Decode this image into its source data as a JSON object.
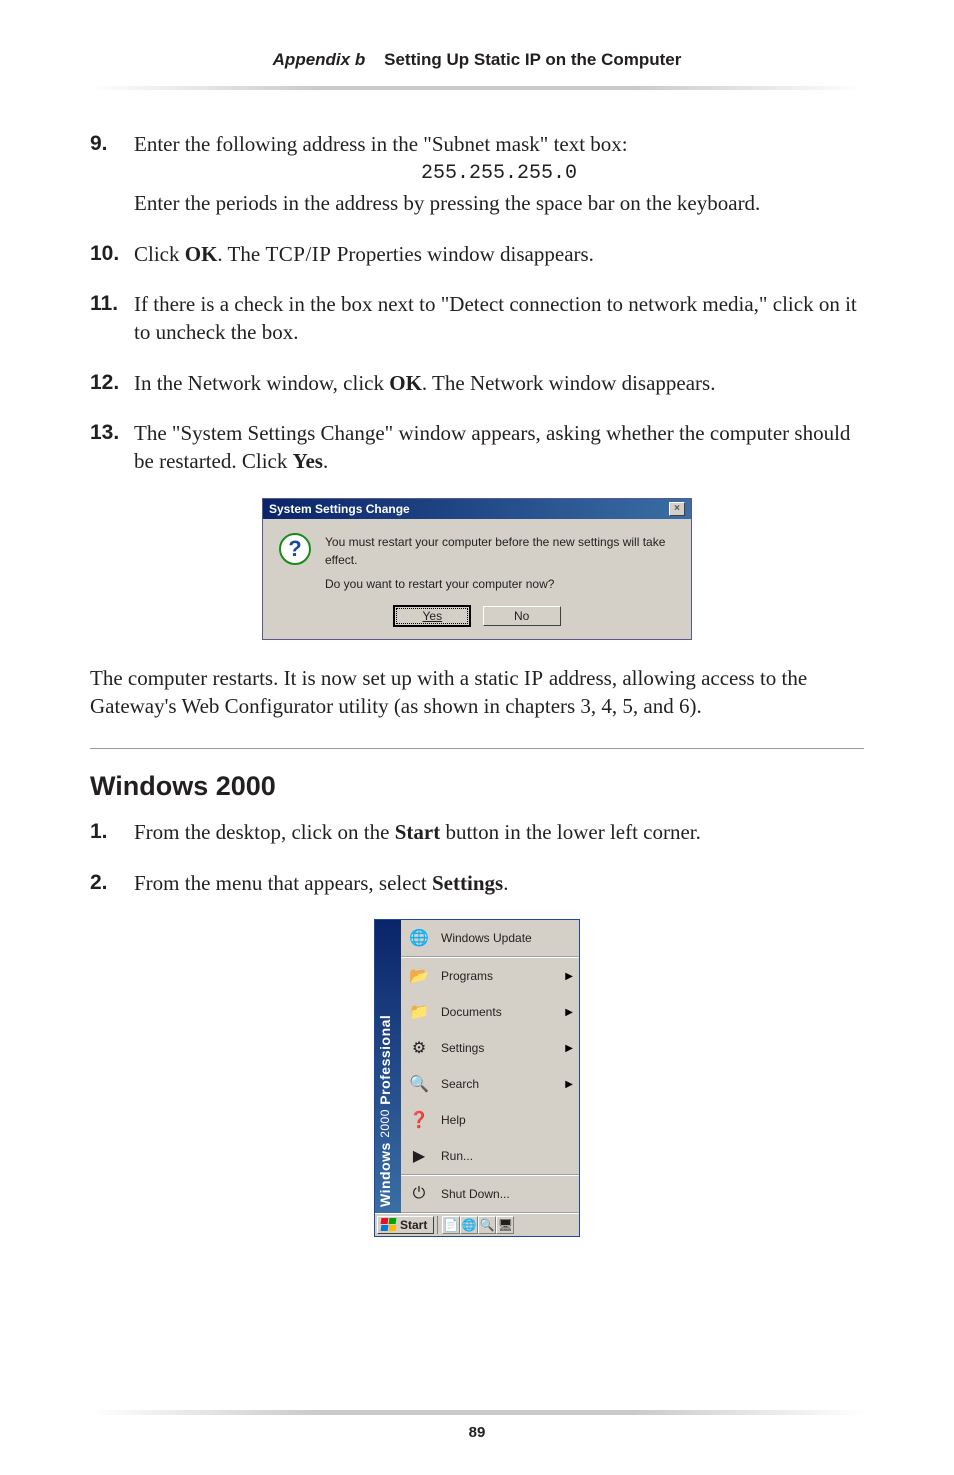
{
  "header": {
    "italic_part": "Appendix b",
    "bold_part": "Setting Up Static IP on the Computer"
  },
  "steps_a": [
    {
      "num": "9.",
      "lines": [
        {
          "type": "text",
          "runs": [
            {
              "t": "Enter the following address in the \"Subnet mask\" text box:"
            }
          ]
        },
        {
          "type": "mono",
          "value": "255.255.255.0"
        },
        {
          "type": "text",
          "runs": [
            {
              "t": "Enter the periods in the address by pressing the space bar on the keyboard."
            }
          ]
        }
      ]
    },
    {
      "num": "10.",
      "lines": [
        {
          "type": "text",
          "runs": [
            {
              "t": "Click "
            },
            {
              "t": "OK",
              "bold": true
            },
            {
              "t": ". The "
            },
            {
              "t": "TCP/IP",
              "sc": true
            },
            {
              "t": " Properties window disappears."
            }
          ]
        }
      ]
    },
    {
      "num": "11.",
      "lines": [
        {
          "type": "text",
          "runs": [
            {
              "t": "If there is a check in the box next to \"Detect connection to network media,\" click on it to uncheck the box."
            }
          ]
        }
      ]
    },
    {
      "num": "12.",
      "lines": [
        {
          "type": "text",
          "runs": [
            {
              "t": "In the Network window, click "
            },
            {
              "t": "OK",
              "bold": true
            },
            {
              "t": ". The Network window disappears."
            }
          ]
        }
      ]
    },
    {
      "num": "13.",
      "lines": [
        {
          "type": "text",
          "runs": [
            {
              "t": "The \"System Settings Change\" window appears, asking whether the computer should be restarted. Click "
            },
            {
              "t": "Yes",
              "bold": true
            },
            {
              "t": "."
            }
          ]
        }
      ]
    }
  ],
  "dialog": {
    "title": "System Settings Change",
    "line1": "You must restart your computer before the new settings will take effect.",
    "line2": "Do you want to restart your computer now?",
    "yes": "Yes",
    "no": "No"
  },
  "after_dialog": {
    "runs": [
      {
        "t": "The computer restarts. It is now set up with a static "
      },
      {
        "t": "IP",
        "sc": true
      },
      {
        "t": " address, allowing access to the Gateway's Web Configurator utility (as shown in chapters 3, 4, 5, and 6)."
      }
    ]
  },
  "section_title": "Windows 2000",
  "steps_b": [
    {
      "num": "1.",
      "lines": [
        {
          "type": "text",
          "runs": [
            {
              "t": "From the desktop, click on the "
            },
            {
              "t": "Start",
              "bold": true
            },
            {
              "t": " button in the lower left corner."
            }
          ]
        }
      ]
    },
    {
      "num": "2.",
      "lines": [
        {
          "type": "text",
          "runs": [
            {
              "t": "From the menu that appears, select "
            },
            {
              "t": "Settings",
              "bold": true
            },
            {
              "t": "."
            }
          ]
        }
      ]
    }
  ],
  "startmenu": {
    "sidebar_brand": "Windows",
    "sidebar_year": "2000",
    "sidebar_edition": "Professional",
    "groups": [
      [
        {
          "icon": "🌐",
          "label": "Windows Update",
          "arrow": false
        }
      ],
      [
        {
          "icon": "📂",
          "label": "Programs",
          "arrow": true
        },
        {
          "icon": "📁",
          "label": "Documents",
          "arrow": true
        },
        {
          "icon": "⚙",
          "label": "Settings",
          "arrow": true
        },
        {
          "icon": "🔍",
          "label": "Search",
          "arrow": true
        },
        {
          "icon": "❓",
          "label": "Help",
          "arrow": false
        },
        {
          "icon": "▶",
          "label": "Run...",
          "arrow": false
        }
      ],
      [
        {
          "icon": "⏻",
          "label": "Shut Down...",
          "arrow": false
        }
      ]
    ],
    "start_label": "Start",
    "tray_icons": [
      "📄",
      "🌐",
      "🔍",
      "🖥"
    ]
  },
  "page_number": "89",
  "colors": {
    "rule_gradient_mid": "#c9c9c9",
    "titlebar_start": "#0a246a",
    "titlebar_end": "#3a6ea5",
    "win_bg": "#d4d0c8",
    "text": "#231f20"
  }
}
